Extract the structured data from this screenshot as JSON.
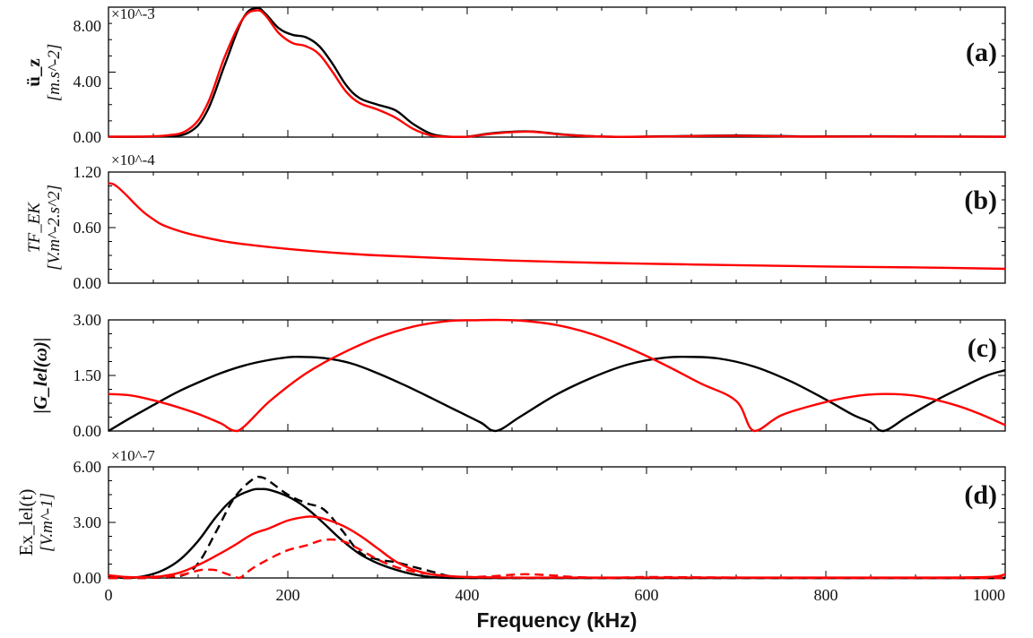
{
  "chart_data": [
    {
      "id": "a",
      "type": "line",
      "panel_label": "(a)",
      "ylabel": "ü_z",
      "ylabel_unit": "[m.s^-2]",
      "y_multiplier": "×10^-3",
      "xlim": [
        0,
        1000
      ],
      "ylim": [
        0,
        8.0
      ],
      "yticks": [
        "0.00",
        "4.00",
        "8.00"
      ],
      "series": [
        {
          "color": "#000000",
          "dash": "solid",
          "x": [
            0,
            60,
            90,
            110,
            130,
            150,
            165,
            175,
            190,
            205,
            220,
            235,
            250,
            265,
            280,
            300,
            320,
            340,
            360,
            380,
            400,
            430,
            470,
            510,
            560,
            620,
            700,
            780,
            860,
            1000
          ],
          "y": [
            0.02,
            0.05,
            0.3,
            1.6,
            4.5,
            7.3,
            7.95,
            7.6,
            6.7,
            6.3,
            6.15,
            5.6,
            4.5,
            3.2,
            2.4,
            2.0,
            1.65,
            0.8,
            0.2,
            0.02,
            0.02,
            0.25,
            0.35,
            0.15,
            0.02,
            0.05,
            0.1,
            0.04,
            0.05,
            0.02
          ]
        },
        {
          "color": "#ff0000",
          "dash": "solid",
          "x": [
            0,
            60,
            90,
            110,
            130,
            150,
            165,
            175,
            190,
            205,
            220,
            235,
            250,
            265,
            280,
            300,
            320,
            340,
            360,
            380,
            400,
            430,
            470,
            510,
            560,
            620,
            700,
            780,
            860,
            1000
          ],
          "y": [
            0.02,
            0.08,
            0.5,
            2.0,
            5.0,
            7.3,
            7.8,
            7.5,
            6.4,
            5.8,
            5.6,
            5.1,
            4.0,
            2.8,
            2.1,
            1.7,
            1.2,
            0.5,
            0.1,
            0.02,
            0.02,
            0.22,
            0.33,
            0.13,
            0.02,
            0.04,
            0.08,
            0.03,
            0.04,
            0.02
          ]
        }
      ]
    },
    {
      "id": "b",
      "type": "line",
      "panel_label": "(b)",
      "ylabel": "TF_EK",
      "ylabel_unit": "[V.m^-2.s^2]",
      "y_multiplier": "×10^-4",
      "xlim": [
        0,
        1000
      ],
      "ylim": [
        0,
        1.2
      ],
      "yticks": [
        "0.00",
        "0.60",
        "1.20"
      ],
      "series": [
        {
          "color": "#ff0000",
          "dash": "solid",
          "x": [
            0,
            5,
            10,
            20,
            30,
            40,
            50,
            60,
            80,
            100,
            130,
            160,
            200,
            250,
            300,
            400,
            500,
            600,
            700,
            800,
            900,
            1000
          ],
          "y": [
            1.08,
            1.07,
            1.04,
            0.95,
            0.85,
            0.76,
            0.69,
            0.63,
            0.56,
            0.51,
            0.45,
            0.41,
            0.37,
            0.33,
            0.3,
            0.26,
            0.23,
            0.21,
            0.195,
            0.18,
            0.17,
            0.155
          ]
        }
      ]
    },
    {
      "id": "c",
      "type": "line",
      "panel_label": "(c)",
      "ylabel": "|G_lel(ω)|",
      "xlim": [
        0,
        1000
      ],
      "ylim": [
        0,
        3.0
      ],
      "yticks": [
        "0.00",
        "1.50",
        "3.00"
      ],
      "series": [
        {
          "color": "#000000",
          "dash": "solid",
          "x": [
            0,
            25,
            50,
            75,
            100,
            125,
            150,
            175,
            200,
            216,
            240,
            270,
            300,
            330,
            360,
            390,
            415,
            432,
            460,
            500,
            540,
            580,
            620,
            648,
            680,
            720,
            760,
            800,
            830,
            850,
            864,
            890,
            920,
            950,
            980,
            1000
          ],
          "y": [
            0.0,
            0.36,
            0.7,
            1.03,
            1.31,
            1.56,
            1.76,
            1.9,
            1.99,
            2.0,
            1.97,
            1.83,
            1.56,
            1.24,
            0.89,
            0.53,
            0.23,
            0.0,
            0.4,
            0.99,
            1.45,
            1.8,
            1.98,
            2.0,
            1.96,
            1.74,
            1.35,
            0.85,
            0.44,
            0.23,
            0.0,
            0.37,
            0.79,
            1.16,
            1.5,
            1.64
          ]
        },
        {
          "color": "#ff0000",
          "dash": "solid",
          "x": [
            0,
            25,
            50,
            75,
            100,
            125,
            144,
            180,
            220,
            260,
            300,
            340,
            380,
            410,
            432,
            460,
            500,
            540,
            580,
            620,
            660,
            700,
            720,
            750,
            790,
            830,
            864,
            900,
            940,
            970,
            1000
          ],
          "y": [
            1.0,
            0.96,
            0.83,
            0.66,
            0.46,
            0.21,
            0.0,
            0.81,
            1.55,
            2.09,
            2.52,
            2.82,
            2.97,
            2.99,
            3.0,
            2.98,
            2.86,
            2.61,
            2.24,
            1.79,
            1.29,
            0.81,
            0.0,
            0.42,
            0.72,
            0.93,
            1.0,
            0.95,
            0.73,
            0.48,
            0.16
          ]
        }
      ]
    },
    {
      "id": "d",
      "type": "line",
      "panel_label": "(d)",
      "ylabel": "Ex_lel(t)",
      "ylabel_unit": "[V.m^-1]",
      "y_multiplier": "×10^-7",
      "xlim": [
        0,
        1000
      ],
      "ylim": [
        0,
        6.0
      ],
      "yticks": [
        "0.00",
        "3.00",
        "6.00"
      ],
      "xticks": [
        "0",
        "200",
        "400",
        "600",
        "800",
        "1000"
      ],
      "xlabel": "Frequency (kHz)",
      "series": [
        {
          "color": "#000000",
          "dash": "solid",
          "x": [
            0,
            20,
            40,
            60,
            80,
            100,
            120,
            140,
            160,
            170,
            180,
            200,
            220,
            240,
            260,
            280,
            300,
            320,
            340,
            360,
            380,
            400,
            500,
            600,
            700,
            800,
            1000
          ],
          "y": [
            0.1,
            0.0,
            0.1,
            0.4,
            1.0,
            2.0,
            3.3,
            4.3,
            4.75,
            4.8,
            4.75,
            4.4,
            3.8,
            2.95,
            2.05,
            1.3,
            0.8,
            0.45,
            0.2,
            0.05,
            0.0,
            0.0,
            0.0,
            0.0,
            0.0,
            0.0,
            0.0
          ]
        },
        {
          "color": "#000000",
          "dash": "dashed",
          "x": [
            0,
            40,
            80,
            100,
            120,
            140,
            160,
            170,
            180,
            200,
            220,
            240,
            260,
            280,
            300,
            320,
            340,
            360,
            380,
            400,
            500,
            1000
          ],
          "y": [
            0.0,
            0.0,
            0.1,
            0.8,
            2.5,
            4.3,
            5.3,
            5.45,
            5.2,
            4.5,
            4.05,
            3.7,
            2.6,
            1.4,
            1.0,
            0.85,
            0.6,
            0.35,
            0.1,
            0.0,
            0.0,
            0.0
          ]
        },
        {
          "color": "#ff0000",
          "dash": "solid",
          "x": [
            0,
            20,
            40,
            60,
            80,
            100,
            120,
            140,
            160,
            180,
            200,
            220,
            230,
            240,
            260,
            280,
            300,
            320,
            340,
            360,
            380,
            400,
            450,
            500,
            600,
            700,
            800,
            900,
            980,
            1000
          ],
          "y": [
            0.15,
            0.05,
            0.05,
            0.1,
            0.3,
            0.7,
            1.2,
            1.75,
            2.35,
            2.7,
            3.1,
            3.3,
            3.3,
            3.2,
            2.85,
            2.3,
            1.6,
            0.9,
            0.45,
            0.2,
            0.1,
            0.05,
            0.02,
            0.02,
            0.02,
            0.02,
            0.02,
            0.02,
            0.05,
            0.2
          ]
        },
        {
          "color": "#ff0000",
          "dash": "dashed",
          "x": [
            0,
            20,
            40,
            60,
            80,
            100,
            110,
            120,
            130,
            140,
            145,
            150,
            160,
            180,
            200,
            220,
            240,
            260,
            280,
            300,
            320,
            340,
            360,
            380,
            400,
            430,
            460,
            490,
            520,
            560,
            600,
            700,
            800,
            1000
          ],
          "y": [
            0.0,
            0.0,
            0.0,
            0.05,
            0.15,
            0.4,
            0.45,
            0.42,
            0.25,
            0.08,
            0.0,
            0.1,
            0.5,
            1.05,
            1.5,
            1.75,
            2.05,
            2.0,
            1.55,
            1.0,
            0.6,
            0.35,
            0.2,
            0.1,
            0.05,
            0.1,
            0.2,
            0.15,
            0.05,
            0.0,
            0.05,
            0.02,
            0.0,
            0.0
          ]
        }
      ]
    }
  ]
}
